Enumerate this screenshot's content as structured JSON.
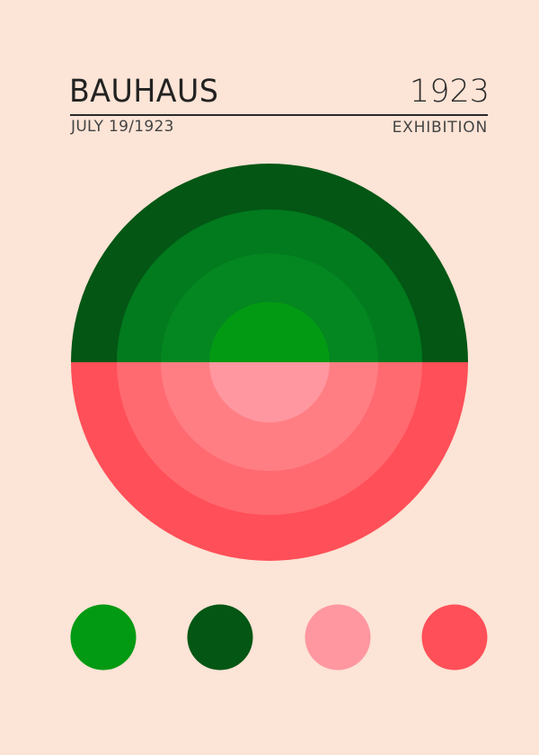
{
  "header": {
    "title": "BAUHAUS",
    "year": "1923",
    "date": "JULY 19/1923",
    "subtitle": "EXHIBITION"
  },
  "colors": {
    "background": "#fce4d6",
    "green_rings": [
      "#035614",
      "#027a1e",
      "#048620",
      "#029a12"
    ],
    "red_rings": [
      "#ff4f58",
      "#ff6a70",
      "#ff7e84",
      "#ff97a0"
    ],
    "swatches": [
      "#029a12",
      "#035614",
      "#ff97a0",
      "#ff4f58"
    ]
  }
}
